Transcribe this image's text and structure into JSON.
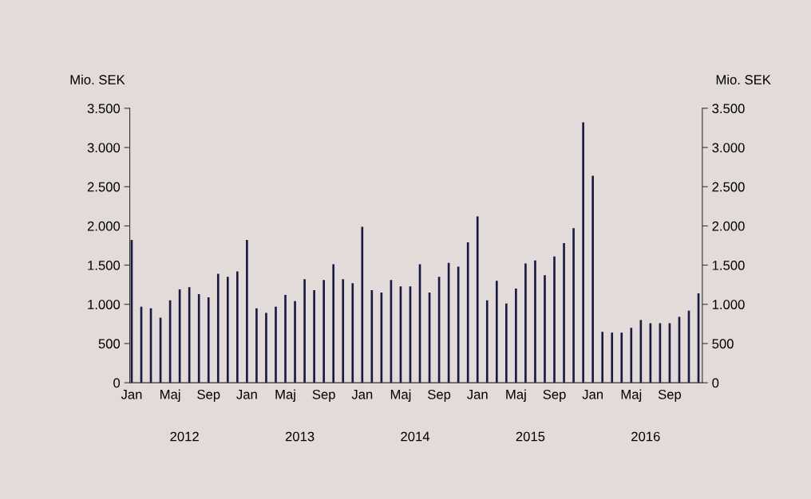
{
  "chart_data": {
    "type": "bar",
    "ylabel": "Mio. SEK",
    "y2label": "Mio. SEK",
    "categories": [
      "Jan",
      null,
      null,
      null,
      "Maj",
      null,
      null,
      null,
      "Sep",
      null,
      null,
      null,
      "Jan",
      null,
      null,
      null,
      "Maj",
      null,
      null,
      null,
      "Sep",
      null,
      null,
      null,
      "Jan",
      null,
      null,
      null,
      "Maj",
      null,
      null,
      null,
      "Sep",
      null,
      null,
      null,
      "Jan",
      null,
      null,
      null,
      "Maj",
      null,
      null,
      null,
      "Sep",
      null,
      null,
      null,
      "Jan",
      null,
      null,
      null,
      "Maj",
      null,
      null,
      null,
      "Sep",
      null,
      null,
      null
    ],
    "values": [
      1820,
      970,
      950,
      830,
      1050,
      1190,
      1220,
      1130,
      1090,
      1390,
      1350,
      1420,
      1820,
      950,
      890,
      970,
      1120,
      1040,
      1320,
      1180,
      1310,
      1510,
      1320,
      1270,
      1990,
      1180,
      1150,
      1310,
      1230,
      1230,
      1510,
      1150,
      1350,
      1530,
      1480,
      1790,
      2120,
      1050,
      1300,
      1010,
      1200,
      1520,
      1560,
      1370,
      1610,
      1780,
      1970,
      3320,
      2640,
      650,
      640,
      640,
      700,
      800,
      760,
      760,
      760,
      840,
      920,
      1140
    ],
    "color": "#1a1a40",
    "ylim": [
      0,
      3500
    ],
    "yticks": [
      0,
      {
        "value": 500,
        "label": "500"
      },
      {
        "value": 1000,
        "label": "1.000"
      },
      {
        "value": 1500,
        "label": "1.500"
      },
      {
        "value": 2000,
        "label": "2.000"
      },
      {
        "value": 2500,
        "label": "2.500"
      },
      {
        "value": 3000,
        "label": "3.000"
      },
      {
        "value": 3500,
        "label": "3.500"
      }
    ],
    "y2lim": [
      0,
      3500
    ],
    "y2ticks": [
      0,
      {
        "value": 500,
        "label": "500"
      },
      {
        "value": 1000,
        "label": "1.000"
      },
      {
        "value": 1500,
        "label": "1.500"
      },
      {
        "value": 2000,
        "label": "2.000"
      },
      {
        "value": 2500,
        "label": "2.500"
      },
      {
        "value": 3000,
        "label": "3.000"
      },
      {
        "value": 3500,
        "label": "3.500"
      }
    ],
    "annotations": [
      "2012",
      "2013",
      "2014",
      "2015",
      "2016"
    ],
    "grid": false,
    "legend": false
  }
}
